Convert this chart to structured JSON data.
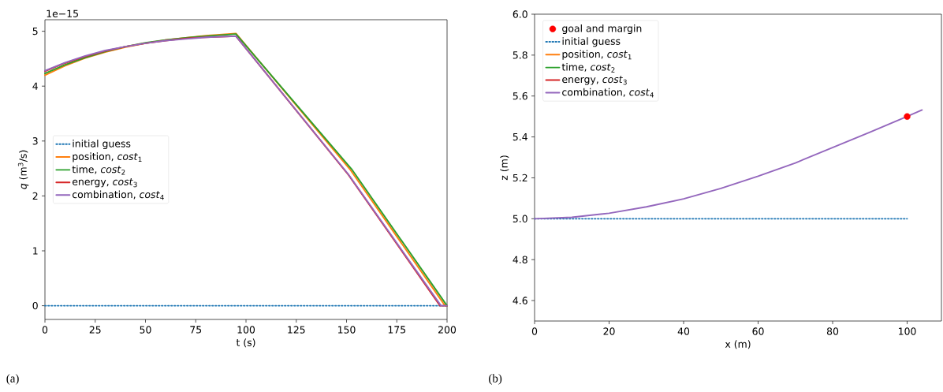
{
  "chart_data": [
    {
      "type": "line",
      "xlabel": "t (s)",
      "ylabel": "*q* (m$^{3}$/s)",
      "xlim": [
        0,
        200
      ],
      "ylim": [
        -0.25,
        5.21
      ],
      "xticks": [
        0,
        25,
        50,
        75,
        100,
        125,
        150,
        175,
        200
      ],
      "yticks": [
        0,
        1,
        2,
        3,
        4,
        5
      ],
      "legend": "center left",
      "annotations": [
        "1e−15",
        "(a)"
      ],
      "series": [
        {
          "name": "initial guess",
          "color": "#1f77b4",
          "line_style": "dotted",
          "x": [
            0,
            200
          ],
          "values": [
            0,
            0
          ]
        },
        {
          "name": "position, *cost*$_{1}$",
          "color": "#ff7f0e",
          "x": [
            0,
            10,
            20,
            30,
            40,
            50,
            60,
            70,
            80,
            95,
            152,
            199,
            200
          ],
          "values": [
            4.2,
            4.37,
            4.51,
            4.62,
            4.71,
            4.78,
            4.84,
            4.88,
            4.92,
            4.96,
            2.47,
            0,
            0
          ]
        },
        {
          "name": "time, *cost*$_{2}$",
          "color": "#2ca02c",
          "x": [
            0,
            10,
            20,
            30,
            40,
            50,
            60,
            70,
            80,
            95,
            152.5,
            200
          ],
          "values": [
            4.23,
            4.39,
            4.52,
            4.63,
            4.72,
            4.79,
            4.84,
            4.88,
            4.91,
            4.95,
            2.49,
            0
          ]
        },
        {
          "name": "energy, *cost*$_{3}$",
          "color": "#d62728",
          "x": [
            0,
            10,
            20,
            30,
            40,
            50,
            60,
            70,
            80,
            95,
            151,
            196.5,
            200
          ],
          "values": [
            4.27,
            4.42,
            4.54,
            4.64,
            4.72,
            4.78,
            4.83,
            4.87,
            4.89,
            4.91,
            2.38,
            0,
            0
          ]
        },
        {
          "name": "combination, *cost*$_{4}$",
          "color": "#9467bd",
          "x": [
            0,
            10,
            20,
            30,
            40,
            50,
            60,
            70,
            80,
            95,
            151,
            197,
            200
          ],
          "values": [
            4.28,
            4.43,
            4.55,
            4.65,
            4.72,
            4.78,
            4.83,
            4.86,
            4.89,
            4.91,
            2.39,
            0,
            0
          ]
        }
      ]
    },
    {
      "type": "line",
      "xlabel": "x (m)",
      "ylabel": "z (m)",
      "xlim": [
        0,
        109.2
      ],
      "ylim": [
        4.5,
        6.0
      ],
      "xticks": [
        0,
        20,
        40,
        60,
        80,
        100
      ],
      "yticks": [
        {
          "value": 4.6,
          "label": "4.6"
        },
        {
          "value": 4.8,
          "label": "4.8"
        },
        {
          "value": 5.0,
          "label": "5.0"
        },
        {
          "value": 5.2,
          "label": "5.2"
        },
        {
          "value": 5.4,
          "label": "5.4"
        },
        {
          "value": 5.6,
          "label": "5.6"
        },
        {
          "value": 5.8,
          "label": "5.8"
        },
        {
          "value": 6.0,
          "label": "6.0"
        }
      ],
      "legend": "top left",
      "annotations": [
        "(b)"
      ],
      "series": [
        {
          "name": "goal and margin",
          "type": "scatter",
          "marker": "circle",
          "color": "#ff0000",
          "x": [
            100
          ],
          "values": [
            5.5
          ]
        },
        {
          "name": "initial guess",
          "color": "#1f77b4",
          "line_style": "dotted",
          "x": [
            0,
            100
          ],
          "values": [
            5.0,
            5.0
          ]
        },
        {
          "name": "position, *cost*$_{1}$",
          "color": "#ff7f0e"
        },
        {
          "name": "time, *cost*$_{2}$",
          "color": "#2ca02c"
        },
        {
          "name": "energy, *cost*$_{3}$",
          "color": "#d62728"
        },
        {
          "name": "combination, *cost*$_{4}$",
          "color": "#9467bd",
          "x": [
            0,
            10,
            20,
            30,
            40,
            50,
            60,
            70,
            80,
            90,
            100,
            104
          ],
          "values": [
            5.0,
            5.007,
            5.027,
            5.058,
            5.097,
            5.148,
            5.208,
            5.273,
            5.348,
            5.423,
            5.5,
            5.532
          ]
        }
      ]
    }
  ]
}
